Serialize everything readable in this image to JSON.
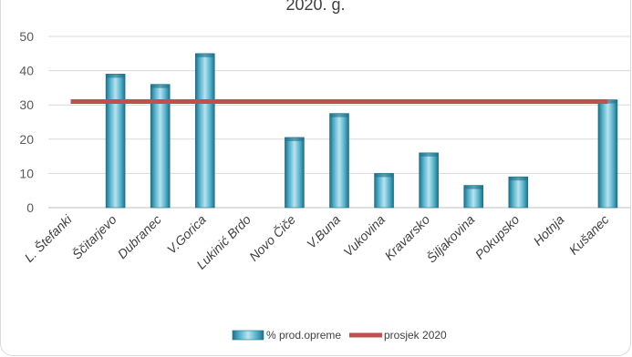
{
  "chart_data": {
    "type": "bar",
    "title": "2020. g.",
    "categories": [
      "L. Štefanki",
      "Ščitarjevo",
      "Dubranec",
      "V.Gorica",
      "Lukinić Brdo",
      "Novo Čiče",
      "V.Buna",
      "Vukovina",
      "Kravarsko",
      "Šiljakovina",
      "Pokupsko",
      "Hotnja",
      "Kušanec"
    ],
    "series": [
      {
        "name": "% prod.opreme",
        "type": "bar",
        "values": [
          0,
          39,
          36,
          45,
          0,
          20.5,
          27.5,
          10,
          16,
          6.5,
          9,
          0,
          31.5
        ]
      },
      {
        "name": "prosjek 2020",
        "type": "line",
        "values": [
          31,
          31,
          31,
          31,
          31,
          31,
          31,
          31,
          31,
          31,
          31,
          31,
          31
        ]
      }
    ],
    "yticks": [
      "0",
      "10",
      "20",
      "30",
      "40",
      "50"
    ],
    "ylim": [
      0,
      50
    ],
    "grid": true,
    "legend_position": "bottom",
    "colors": {
      "bar": "#4bacc6",
      "bar_dark": "#1f6f86",
      "line": "#c0504d",
      "grid": "#d9d9d9",
      "axis": "#bfbfbf"
    }
  }
}
